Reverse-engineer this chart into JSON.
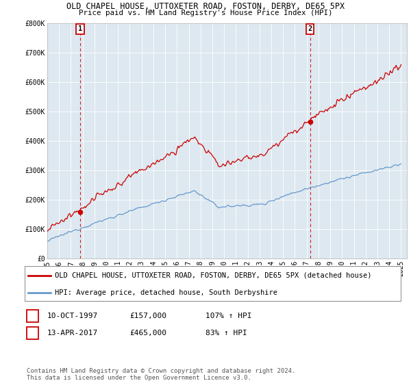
{
  "title_line1": "OLD CHAPEL HOUSE, UTTOXETER ROAD, FOSTON, DERBY, DE65 5PX",
  "title_line2": "Price paid vs. HM Land Registry's House Price Index (HPI)",
  "ylim": [
    0,
    800000
  ],
  "yticks": [
    0,
    100000,
    200000,
    300000,
    400000,
    500000,
    600000,
    700000,
    800000
  ],
  "ytick_labels": [
    "£0",
    "£100K",
    "£200K",
    "£300K",
    "£400K",
    "£500K",
    "£600K",
    "£700K",
    "£800K"
  ],
  "xlim_start": 1995.0,
  "xlim_end": 2025.5,
  "xticks": [
    1995,
    1996,
    1997,
    1998,
    1999,
    2000,
    2001,
    2002,
    2003,
    2004,
    2005,
    2006,
    2007,
    2008,
    2009,
    2010,
    2011,
    2012,
    2013,
    2014,
    2015,
    2016,
    2017,
    2018,
    2019,
    2020,
    2021,
    2022,
    2023,
    2024,
    2025
  ],
  "marker1_x": 1997.78,
  "marker1_y": 157000,
  "marker2_x": 2017.28,
  "marker2_y": 465000,
  "sale1_date": "10-OCT-1997",
  "sale1_price": "£157,000",
  "sale1_hpi": "107% ↑ HPI",
  "sale2_date": "13-APR-2017",
  "sale2_price": "£465,000",
  "sale2_hpi": "83% ↑ HPI",
  "legend_house_label": "OLD CHAPEL HOUSE, UTTOXETER ROAD, FOSTON, DERBY, DE65 5PX (detached house)",
  "legend_hpi_label": "HPI: Average price, detached house, South Derbyshire",
  "footnote": "Contains HM Land Registry data © Crown copyright and database right 2024.\nThis data is licensed under the Open Government Licence v3.0.",
  "house_color": "#cc0000",
  "hpi_color": "#6699cc",
  "vline_color": "#cc0000",
  "chart_bg_color": "#dde8f0",
  "background_color": "#ffffff",
  "grid_color": "#ffffff",
  "title_fontsize": 8.5,
  "subtitle_fontsize": 7.8,
  "tick_fontsize": 7.0,
  "legend_fontsize": 7.5,
  "table_fontsize": 8.0,
  "footnote_fontsize": 6.5
}
